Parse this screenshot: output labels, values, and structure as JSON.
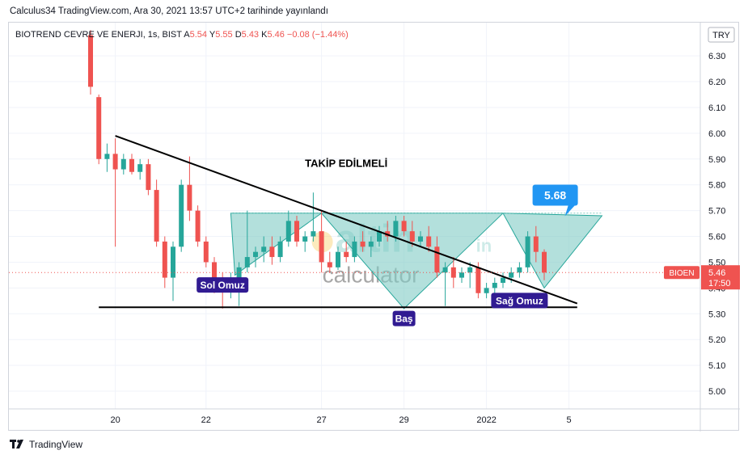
{
  "header": {
    "published": "Calculus34 TradingView.com, Ara 30, 2021 13:57 UTC+2 tarihinde yayınlandı"
  },
  "branding": {
    "logo_text": "TradingView"
  },
  "colors": {
    "up": "#26a69a",
    "down": "#ef5350",
    "pattern_fill": "#80cbc4",
    "price_tag": "#ef5350",
    "target_tag": "#2196f3",
    "label_bg": "#311b92"
  },
  "chart_data": {
    "type": "candlestick",
    "title": "BIOTREND CEVRE VE ENERJI, 1s, BIST",
    "ohlc_header": {
      "o_label": "A",
      "o": "5.54",
      "h_label": "Y",
      "h": "5.55",
      "l_label": "D",
      "l": "5.43",
      "c_label": "K",
      "c": "5.46",
      "change": "−0.08 (−1.44%)"
    },
    "currency": "TRY",
    "symbol_tag": "BIOEN",
    "last_price": "5.46",
    "countdown": "17:50",
    "ylim": [
      4.95,
      6.41
    ],
    "y_ticks": [
      "6.30",
      "6.20",
      "6.10",
      "6.00",
      "5.90",
      "5.80",
      "5.70",
      "5.60",
      "5.50",
      "5.40",
      "5.30",
      "5.20",
      "5.10",
      "5.00"
    ],
    "x_ticks": [
      {
        "label": "20",
        "i": 3
      },
      {
        "label": "22",
        "i": 14
      },
      {
        "label": "27",
        "i": 28
      },
      {
        "label": "29",
        "i": 38
      },
      {
        "label": "2022",
        "i": 48
      },
      {
        "label": "5",
        "i": 58
      }
    ],
    "candles": [
      {
        "o": 6.38,
        "h": 6.4,
        "l": 6.15,
        "c": 6.18
      },
      {
        "o": 6.14,
        "h": 6.15,
        "l": 5.88,
        "c": 5.9
      },
      {
        "o": 5.9,
        "h": 5.96,
        "l": 5.85,
        "c": 5.92
      },
      {
        "o": 5.92,
        "h": 5.98,
        "l": 5.56,
        "c": 5.86
      },
      {
        "o": 5.86,
        "h": 5.92,
        "l": 5.84,
        "c": 5.9
      },
      {
        "o": 5.9,
        "h": 5.92,
        "l": 5.84,
        "c": 5.85
      },
      {
        "o": 5.85,
        "h": 5.9,
        "l": 5.82,
        "c": 5.88
      },
      {
        "o": 5.88,
        "h": 5.9,
        "l": 5.76,
        "c": 5.78
      },
      {
        "o": 5.78,
        "h": 5.82,
        "l": 5.56,
        "c": 5.58
      },
      {
        "o": 5.58,
        "h": 5.6,
        "l": 5.4,
        "c": 5.44
      },
      {
        "o": 5.44,
        "h": 5.58,
        "l": 5.35,
        "c": 5.56
      },
      {
        "o": 5.56,
        "h": 5.82,
        "l": 5.54,
        "c": 5.8
      },
      {
        "o": 5.8,
        "h": 5.91,
        "l": 5.66,
        "c": 5.7
      },
      {
        "o": 5.7,
        "h": 5.72,
        "l": 5.56,
        "c": 5.58
      },
      {
        "o": 5.58,
        "h": 5.6,
        "l": 5.48,
        "c": 5.5
      },
      {
        "o": 5.5,
        "h": 5.52,
        "l": 5.38,
        "c": 5.42
      },
      {
        "o": 5.42,
        "h": 5.46,
        "l": 5.32,
        "c": 5.4
      },
      {
        "o": 5.4,
        "h": 5.46,
        "l": 5.36,
        "c": 5.44
      },
      {
        "o": 5.44,
        "h": 5.5,
        "l": 5.33,
        "c": 5.48
      },
      {
        "o": 5.48,
        "h": 5.7,
        "l": 5.46,
        "c": 5.52
      },
      {
        "o": 5.52,
        "h": 5.56,
        "l": 5.48,
        "c": 5.54
      },
      {
        "o": 5.54,
        "h": 5.6,
        "l": 5.5,
        "c": 5.56
      },
      {
        "o": 5.56,
        "h": 5.6,
        "l": 5.49,
        "c": 5.52
      },
      {
        "o": 5.52,
        "h": 5.6,
        "l": 5.5,
        "c": 5.58
      },
      {
        "o": 5.58,
        "h": 5.7,
        "l": 5.56,
        "c": 5.66
      },
      {
        "o": 5.66,
        "h": 5.68,
        "l": 5.56,
        "c": 5.58
      },
      {
        "o": 5.58,
        "h": 5.62,
        "l": 5.54,
        "c": 5.6
      },
      {
        "o": 5.6,
        "h": 5.77,
        "l": 5.58,
        "c": 5.62
      },
      {
        "o": 5.62,
        "h": 5.7,
        "l": 5.46,
        "c": 5.5
      },
      {
        "o": 5.5,
        "h": 5.54,
        "l": 5.46,
        "c": 5.48
      },
      {
        "o": 5.48,
        "h": 5.56,
        "l": 5.47,
        "c": 5.54
      },
      {
        "o": 5.54,
        "h": 5.58,
        "l": 5.5,
        "c": 5.52
      },
      {
        "o": 5.52,
        "h": 5.6,
        "l": 5.5,
        "c": 5.58
      },
      {
        "o": 5.58,
        "h": 5.62,
        "l": 5.54,
        "c": 5.56
      },
      {
        "o": 5.56,
        "h": 5.6,
        "l": 5.52,
        "c": 5.58
      },
      {
        "o": 5.58,
        "h": 5.64,
        "l": 5.56,
        "c": 5.62
      },
      {
        "o": 5.62,
        "h": 5.66,
        "l": 5.58,
        "c": 5.6
      },
      {
        "o": 5.6,
        "h": 5.68,
        "l": 5.58,
        "c": 5.66
      },
      {
        "o": 5.66,
        "h": 5.68,
        "l": 5.6,
        "c": 5.62
      },
      {
        "o": 5.62,
        "h": 5.66,
        "l": 5.56,
        "c": 5.58
      },
      {
        "o": 5.58,
        "h": 5.62,
        "l": 5.56,
        "c": 5.6
      },
      {
        "o": 5.6,
        "h": 5.64,
        "l": 5.54,
        "c": 5.56
      },
      {
        "o": 5.56,
        "h": 5.6,
        "l": 5.44,
        "c": 5.46
      },
      {
        "o": 5.46,
        "h": 5.5,
        "l": 5.33,
        "c": 5.48
      },
      {
        "o": 5.48,
        "h": 5.52,
        "l": 5.4,
        "c": 5.44
      },
      {
        "o": 5.44,
        "h": 5.48,
        "l": 5.42,
        "c": 5.46
      },
      {
        "o": 5.46,
        "h": 5.5,
        "l": 5.4,
        "c": 5.48
      },
      {
        "o": 5.48,
        "h": 5.5,
        "l": 5.36,
        "c": 5.38
      },
      {
        "o": 5.38,
        "h": 5.42,
        "l": 5.36,
        "c": 5.4
      },
      {
        "o": 5.4,
        "h": 5.44,
        "l": 5.37,
        "c": 5.42
      },
      {
        "o": 5.42,
        "h": 5.46,
        "l": 5.4,
        "c": 5.44
      },
      {
        "o": 5.44,
        "h": 5.48,
        "l": 5.42,
        "c": 5.46
      },
      {
        "o": 5.46,
        "h": 5.5,
        "l": 5.44,
        "c": 5.48
      },
      {
        "o": 5.48,
        "h": 5.62,
        "l": 5.46,
        "c": 5.6
      },
      {
        "o": 5.6,
        "h": 5.64,
        "l": 5.5,
        "c": 5.54
      },
      {
        "o": 5.54,
        "h": 5.55,
        "l": 5.43,
        "c": 5.46
      }
    ],
    "trendlines": [
      {
        "name": "descending-resistance",
        "from": {
          "i": 3,
          "y": 5.99
        },
        "to": {
          "i": 59,
          "y": 5.34
        }
      },
      {
        "name": "horizontal-support",
        "from": {
          "i": 1,
          "y": 5.325
        },
        "to": {
          "i": 59,
          "y": 5.325
        }
      },
      {
        "name": "neckline",
        "from": {
          "i": 17,
          "y": 5.69
        },
        "to": {
          "i": 53,
          "y": 5.69
        }
      }
    ],
    "pattern": {
      "name": "inverse head and shoulders",
      "left_shoulder": {
        "i": 17,
        "y": 5.45
      },
      "head": {
        "i": 38,
        "y": 5.32
      },
      "right_shoulder": {
        "i": 55,
        "y": 5.4
      },
      "target": 5.68
    },
    "annotations": [
      {
        "text": "TAKİP EDİLMELİ",
        "i": 31,
        "y": 5.87
      },
      {
        "text": "Sol Omuz",
        "i": 16,
        "y": 5.41
      },
      {
        "text": "Baş",
        "i": 38,
        "y": 5.28
      },
      {
        "text": "Sağ Omuz",
        "i": 52,
        "y": 5.35
      },
      {
        "text": "5.68",
        "i": 53,
        "y": 5.76
      }
    ],
    "watermark": {
      "brand": "altin",
      "suffix": "in",
      "sub": "calculator"
    }
  }
}
